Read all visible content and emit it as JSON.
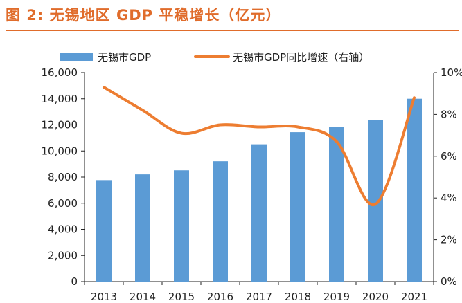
{
  "figure": {
    "label": "图 2:",
    "title": "无锡地区 GDP 平稳增长（亿元）"
  },
  "colors": {
    "title": "#E06C2B",
    "bar": "#5B9BD5",
    "line": "#ED7D31",
    "axis": "#222222"
  },
  "chart_data": {
    "type": "bar",
    "categories": [
      "2013",
      "2014",
      "2015",
      "2016",
      "2017",
      "2018",
      "2019",
      "2020",
      "2021"
    ],
    "series": [
      {
        "name": "无锡市GDP",
        "type": "bar",
        "axis": "left",
        "values": [
          7770,
          8205,
          8518,
          9210,
          10511,
          11439,
          11852,
          12370,
          14003
        ]
      },
      {
        "name": "无锡市GDP同比增速（右轴）",
        "type": "line",
        "axis": "right",
        "values": [
          9.3,
          8.2,
          7.1,
          7.5,
          7.4,
          7.4,
          6.7,
          3.7,
          8.8
        ]
      }
    ],
    "y_left": {
      "min": 0,
      "max": 16000,
      "step": 2000,
      "tick_labels": [
        "0",
        "2,000",
        "4,000",
        "6,000",
        "8,000",
        "10,000",
        "12,000",
        "14,000",
        "16,000"
      ]
    },
    "y_right": {
      "min": 0,
      "max": 10,
      "step": 2,
      "tick_labels": [
        "0%",
        "2%",
        "4%",
        "6%",
        "8%",
        "10%"
      ]
    },
    "legend_position": "top",
    "grid": false
  }
}
